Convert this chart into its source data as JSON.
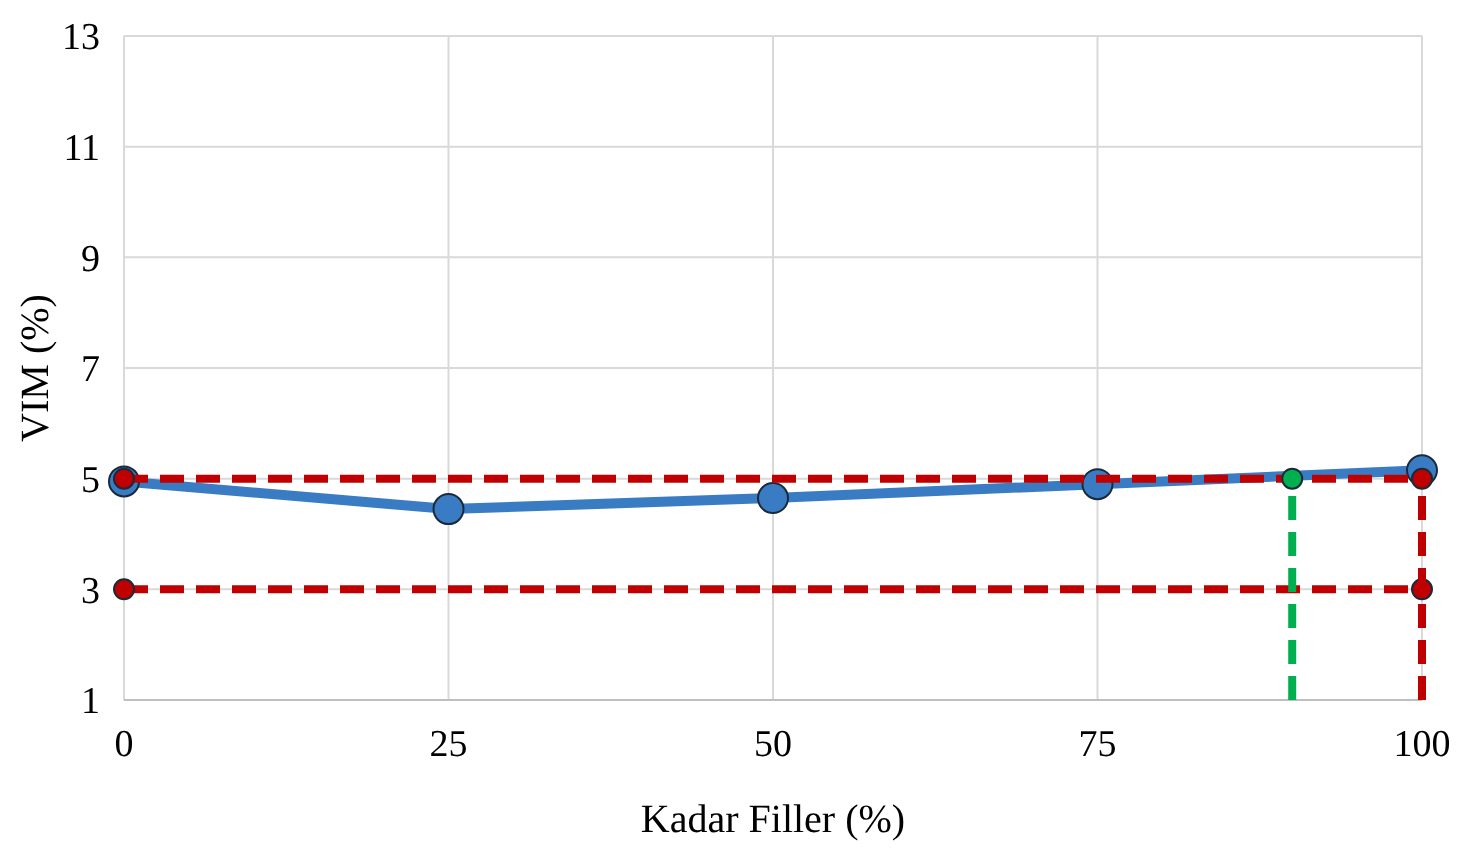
{
  "chart_data": {
    "type": "line",
    "xlabel": "Kadar Filler (%)",
    "ylabel": "VIM (%)",
    "xlim": [
      0,
      100
    ],
    "xticks": [
      0,
      25,
      50,
      75,
      100
    ],
    "ylim": [
      1,
      13
    ],
    "yticks": [
      1,
      3,
      5,
      7,
      9,
      11,
      13
    ],
    "grid": true,
    "series": [
      {
        "color": "#3a7cc4",
        "x": [
          0,
          25,
          50,
          75,
          100
        ],
        "values": [
          4.95,
          4.45,
          4.65,
          4.9,
          5.15
        ],
        "marker": "circle",
        "line_style": "solid"
      },
      {
        "color": "#c00000",
        "x": [
          0,
          100
        ],
        "values": [
          5,
          5
        ],
        "marker": "circle",
        "line_style": "dashed"
      },
      {
        "color": "#c00000",
        "x": [
          0,
          100
        ],
        "values": [
          3,
          3
        ],
        "marker": "circle",
        "line_style": "dashed"
      },
      {
        "color": "#c00000",
        "x": [
          100,
          100
        ],
        "values": [
          1,
          5
        ],
        "marker": "none",
        "line_style": "dashed"
      },
      {
        "color": "#00b050",
        "x": [
          90,
          90
        ],
        "values": [
          1,
          5
        ],
        "marker": "none",
        "line_style": "dashed"
      },
      {
        "type": "scatter",
        "color": "#00b050",
        "x": [
          90
        ],
        "values": [
          5
        ],
        "marker": "circle"
      }
    ]
  }
}
